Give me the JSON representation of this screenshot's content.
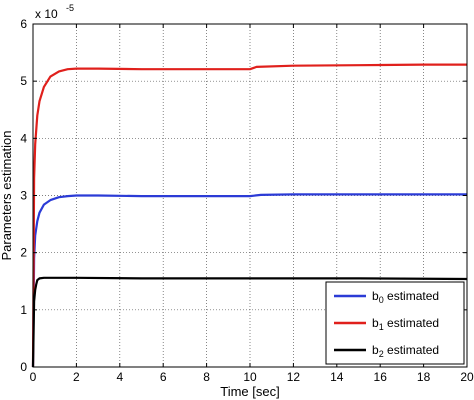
{
  "chart_data": {
    "type": "line",
    "xlabel": "Time [sec]",
    "ylabel": "Parameters estimation",
    "xlim": [
      0,
      20
    ],
    "ylim": [
      0,
      6
    ],
    "y_multiplier_label": "x 10",
    "y_multiplier_exponent": "-5",
    "xticks": [
      0,
      2,
      4,
      6,
      8,
      10,
      12,
      14,
      16,
      18,
      20
    ],
    "yticks": [
      0,
      1,
      2,
      3,
      4,
      5,
      6
    ],
    "grid": "dotted",
    "legend_position": "bottom-right",
    "series": [
      {
        "name": "b0 estimated",
        "name_base": "b",
        "name_sub": "0",
        "name_suffix": " estimated",
        "color": "#2b3bd6",
        "x": [
          0,
          0.05,
          0.1,
          0.2,
          0.3,
          0.5,
          0.8,
          1.2,
          1.6,
          2.0,
          3,
          5,
          8,
          10,
          10.5,
          12,
          15,
          18,
          20
        ],
        "y": [
          0,
          1.9,
          2.3,
          2.55,
          2.7,
          2.84,
          2.92,
          2.97,
          2.99,
          3.0,
          3.0,
          2.99,
          2.99,
          2.99,
          3.01,
          3.02,
          3.02,
          3.02,
          3.02
        ]
      },
      {
        "name": "b1 estimated",
        "name_base": "b",
        "name_sub": "1",
        "name_suffix": " estimated",
        "color": "#e0201c",
        "x": [
          0,
          0.05,
          0.1,
          0.2,
          0.3,
          0.5,
          0.8,
          1.2,
          1.6,
          2.0,
          3,
          5,
          8,
          10,
          10.3,
          12,
          15,
          18,
          20
        ],
        "y": [
          0,
          3.3,
          3.9,
          4.4,
          4.65,
          4.9,
          5.08,
          5.17,
          5.21,
          5.22,
          5.22,
          5.21,
          5.21,
          5.21,
          5.25,
          5.27,
          5.28,
          5.29,
          5.29
        ]
      },
      {
        "name": "b2 estimated",
        "name_base": "b",
        "name_sub": "2",
        "name_suffix": " estimated",
        "color": "#000000",
        "x": [
          0,
          0.05,
          0.1,
          0.15,
          0.2,
          0.3,
          0.5,
          1,
          2,
          5,
          10,
          15,
          20
        ],
        "y": [
          0,
          1.15,
          1.35,
          1.45,
          1.52,
          1.55,
          1.56,
          1.56,
          1.56,
          1.55,
          1.55,
          1.55,
          1.54
        ]
      }
    ]
  }
}
